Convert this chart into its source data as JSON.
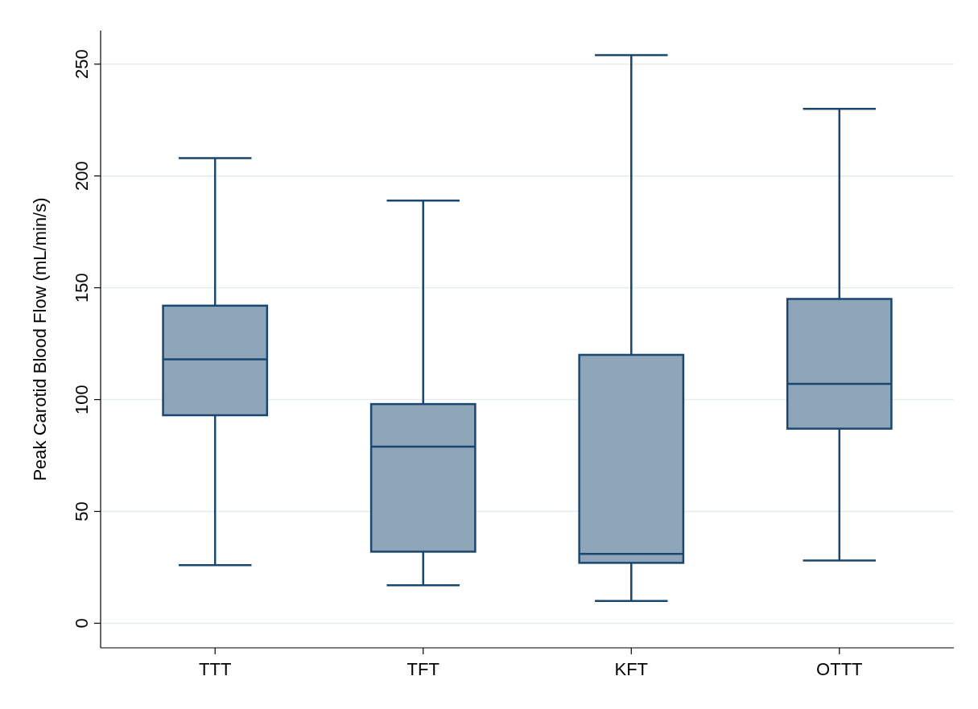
{
  "chart_data": {
    "type": "box",
    "ylabel": "Peak Carotid Blood Flow (mL/min/s)",
    "categories": [
      "TTT",
      "TFT",
      "KFT",
      "OTTT"
    ],
    "color": "#8fa5b9",
    "ylim": [
      -11,
      265
    ],
    "yticks": [
      0,
      50,
      100,
      150,
      200,
      250
    ],
    "grid": "y",
    "boxes": [
      {
        "low": 26,
        "q1": 93,
        "median": 118,
        "q3": 142,
        "high": 208
      },
      {
        "low": 17,
        "q1": 32,
        "median": 79,
        "q3": 98,
        "high": 189
      },
      {
        "low": 10,
        "q1": 27,
        "median": 31,
        "q3": 120,
        "high": 254
      },
      {
        "low": 28,
        "q1": 87,
        "median": 107,
        "q3": 145,
        "high": 230
      }
    ]
  }
}
